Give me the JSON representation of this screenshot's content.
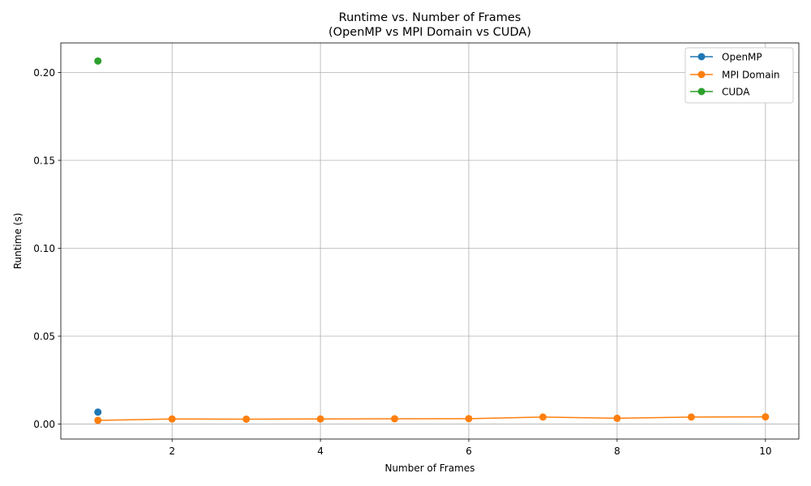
{
  "chart_data": {
    "type": "line",
    "title": "Runtime vs. Number of Frames",
    "subtitle": "(OpenMP vs MPI Domain vs CUDA)",
    "xlabel": "Number of Frames",
    "ylabel": "Runtime (s)",
    "xlim": [
      0.5,
      10.45
    ],
    "ylim": [
      -0.0085,
      0.2168
    ],
    "xticks": [
      2,
      4,
      6,
      8,
      10
    ],
    "xtick_labels": [
      "2",
      "4",
      "6",
      "8",
      "10"
    ],
    "yticks": [
      0.0,
      0.05,
      0.1,
      0.15,
      0.2
    ],
    "ytick_labels": [
      "0.00",
      "0.05",
      "0.10",
      "0.15",
      "0.20"
    ],
    "grid": true,
    "legend_position": "top-right",
    "series": [
      {
        "name": "OpenMP",
        "color": "#1f77b4",
        "marker": "circle",
        "x": [
          1
        ],
        "y": [
          0.0068
        ]
      },
      {
        "name": "MPI Domain",
        "color": "#ff7f0e",
        "marker": "circle",
        "x": [
          1,
          2,
          3,
          4,
          5,
          6,
          7,
          8,
          9,
          10
        ],
        "y": [
          0.0021,
          0.0029,
          0.0028,
          0.0029,
          0.003,
          0.0031,
          0.004,
          0.0033,
          0.004,
          0.0041
        ]
      },
      {
        "name": "CUDA",
        "color": "#2ca02c",
        "marker": "circle",
        "x": [
          1
        ],
        "y": [
          0.2065
        ]
      }
    ]
  }
}
